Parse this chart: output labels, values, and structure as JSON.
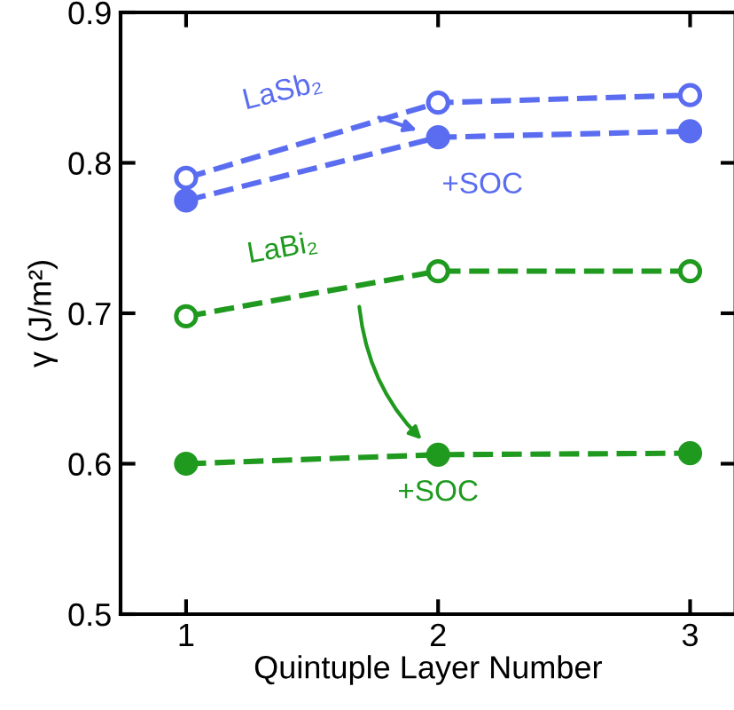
{
  "chart_data": {
    "type": "line",
    "xlabel": "Quintuple Layer Number",
    "ylabel": "γ (J/m²)",
    "x": [
      1,
      2,
      3
    ],
    "xlim": [
      0.74,
      3.18
    ],
    "xticks": [
      1,
      2,
      3
    ],
    "ylim": [
      0.5,
      0.9
    ],
    "yticks": [
      0.5,
      0.6,
      0.7,
      0.8,
      0.9
    ],
    "marker": "circle",
    "line_style": "dashed",
    "grid": false,
    "legend": false,
    "series": [
      {
        "name": "LaSb₂",
        "color": "#5a6cf0",
        "values": [
          0.79,
          0.84,
          0.845
        ]
      },
      {
        "name": "+SOC",
        "color": "#5a6cf0",
        "values": [
          0.775,
          0.817,
          0.821
        ]
      },
      {
        "name": "LaBi₂",
        "color": "#1f9a1f",
        "values": [
          0.698,
          0.728,
          0.728
        ]
      },
      {
        "name": "+SOC",
        "color": "#1f9a1f",
        "values": [
          0.6,
          0.606,
          0.607
        ]
      }
    ]
  }
}
